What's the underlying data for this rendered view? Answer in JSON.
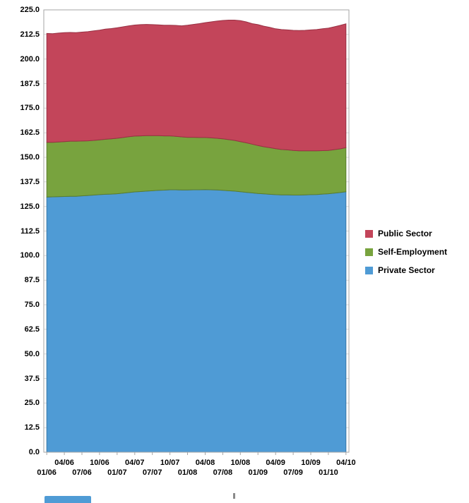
{
  "chart_data": {
    "type": "area",
    "stacked": true,
    "title": "",
    "xlabel": "",
    "ylabel": "",
    "ylim": [
      0,
      225
    ],
    "y_step": 12.5,
    "grid": true,
    "legend_position": "right",
    "y_ticks": [
      "0.0",
      "12.5",
      "25.0",
      "37.5",
      "50.0",
      "62.5",
      "75.0",
      "87.5",
      "100.0",
      "112.5",
      "125.0",
      "137.5",
      "150.0",
      "162.5",
      "175.0",
      "187.5",
      "200.0",
      "212.5",
      "225.0"
    ],
    "x_label_interval": 3,
    "categories": [
      "01/06",
      "02/06",
      "03/06",
      "04/06",
      "05/06",
      "06/06",
      "07/06",
      "08/06",
      "09/06",
      "10/06",
      "11/06",
      "12/06",
      "01/07",
      "02/07",
      "03/07",
      "04/07",
      "05/07",
      "06/07",
      "07/07",
      "08/07",
      "09/07",
      "10/07",
      "11/07",
      "12/07",
      "01/08",
      "02/08",
      "03/08",
      "04/08",
      "05/08",
      "06/08",
      "07/08",
      "08/08",
      "09/08",
      "10/08",
      "11/08",
      "12/08",
      "01/09",
      "02/09",
      "03/09",
      "04/09",
      "05/09",
      "06/09",
      "07/09",
      "08/09",
      "09/09",
      "10/09",
      "11/09",
      "12/09",
      "01/10",
      "02/10",
      "03/10",
      "04/10"
    ],
    "series": [
      {
        "name": "Private Sector",
        "color": "#4f9bd5",
        "edge_color": "#3878a8",
        "values": [
          129.8,
          129.9,
          130.0,
          130.1,
          130.2,
          130.2,
          130.4,
          130.6,
          130.8,
          131.0,
          131.2,
          131.3,
          131.5,
          131.8,
          132.1,
          132.4,
          132.6,
          132.8,
          133.0,
          133.2,
          133.3,
          133.5,
          133.5,
          133.4,
          133.4,
          133.5,
          133.5,
          133.6,
          133.5,
          133.4,
          133.2,
          133.0,
          132.8,
          132.5,
          132.2,
          131.9,
          131.6,
          131.4,
          131.2,
          131.0,
          130.9,
          130.9,
          130.8,
          130.8,
          130.9,
          131.0,
          131.1,
          131.3,
          131.5,
          131.8,
          132.1,
          132.5
        ]
      },
      {
        "name": "Self-Employment",
        "color": "#78a33e",
        "edge_color": "#5a7d2c",
        "values": [
          27.8,
          27.7,
          27.8,
          27.9,
          28.0,
          28.0,
          27.9,
          27.8,
          27.8,
          27.9,
          28.0,
          28.1,
          28.2,
          28.3,
          28.4,
          28.4,
          28.3,
          28.2,
          28.0,
          27.8,
          27.6,
          27.4,
          27.2,
          27.0,
          26.8,
          26.7,
          26.6,
          26.5,
          26.4,
          26.3,
          26.2,
          26.0,
          25.8,
          25.5,
          25.2,
          24.8,
          24.4,
          24.0,
          23.7,
          23.4,
          23.1,
          22.9,
          22.7,
          22.5,
          22.4,
          22.3,
          22.2,
          22.1,
          22.0,
          22.1,
          22.2,
          22.4
        ]
      },
      {
        "name": "Public Sector",
        "color": "#c3455a",
        "edge_color": "#983143",
        "values": [
          55.4,
          55.3,
          55.4,
          55.4,
          55.3,
          55.2,
          55.4,
          55.5,
          55.7,
          55.8,
          56.0,
          56.1,
          56.2,
          56.3,
          56.4,
          56.5,
          56.6,
          56.6,
          56.5,
          56.4,
          56.3,
          56.3,
          56.4,
          56.5,
          57.0,
          57.4,
          57.9,
          58.4,
          59.0,
          59.6,
          60.2,
          60.8,
          61.2,
          61.5,
          61.5,
          61.3,
          61.5,
          61.3,
          61.2,
          61.0,
          61.0,
          61.0,
          61.1,
          61.2,
          61.3,
          61.5,
          61.7,
          62.0,
          62.2,
          62.5,
          62.8,
          63.0
        ]
      }
    ],
    "legend_order": [
      "Public Sector",
      "Self-Employment",
      "Private Sector"
    ]
  },
  "colors": {
    "gridline": "#d9d9d9",
    "plot_border": "#a6a6a6",
    "axis_tick": "#a6a6a6",
    "fragment_blue": "#4f9bd5"
  }
}
